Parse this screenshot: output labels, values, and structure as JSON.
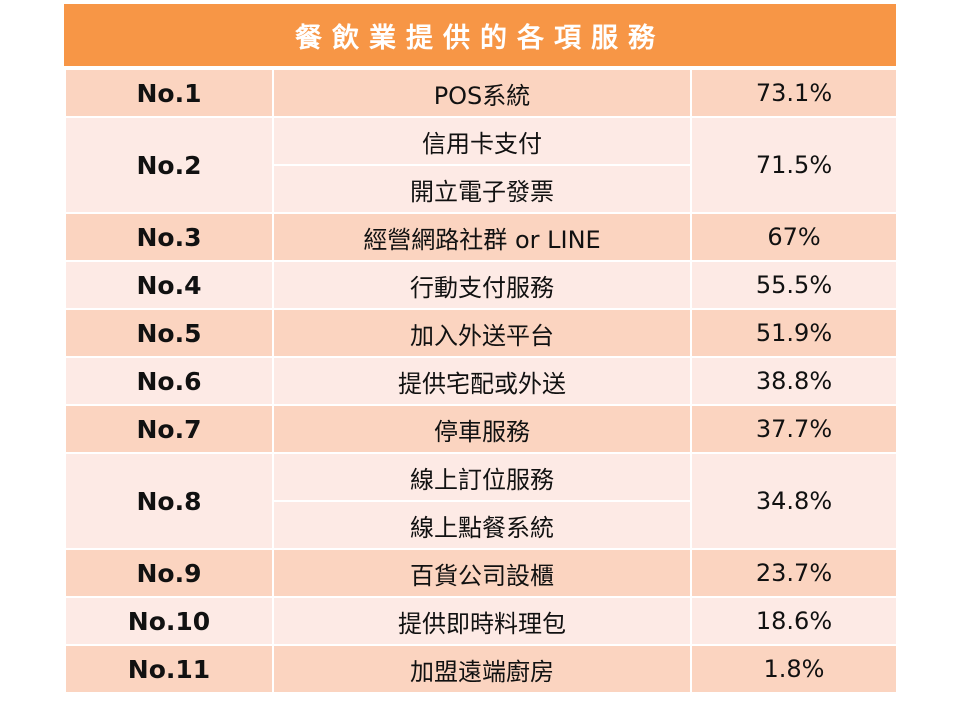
{
  "title": "餐飲業提供的各項服務",
  "rows": [
    {
      "rank": "No.1",
      "items": [
        "POS系統"
      ],
      "pct": "73.1%"
    },
    {
      "rank": "No.2",
      "items": [
        "信用卡支付",
        "開立電子發票"
      ],
      "pct": "71.5%"
    },
    {
      "rank": "No.3",
      "items": [
        "經營網路社群 or LINE"
      ],
      "pct": "67%"
    },
    {
      "rank": "No.4",
      "items": [
        "行動支付服務"
      ],
      "pct": "55.5%"
    },
    {
      "rank": "No.5",
      "items": [
        "加入外送平台"
      ],
      "pct": "51.9%"
    },
    {
      "rank": "No.6",
      "items": [
        "提供宅配或外送"
      ],
      "pct": "38.8%"
    },
    {
      "rank": "No.7",
      "items": [
        "停車服務"
      ],
      "pct": "37.7%"
    },
    {
      "rank": "No.8",
      "items": [
        "線上訂位服務",
        "線上點餐系統"
      ],
      "pct": "34.8%"
    },
    {
      "rank": "No.9",
      "items": [
        "百貨公司設櫃"
      ],
      "pct": "23.7%"
    },
    {
      "rank": "No.10",
      "items": [
        "提供即時料理包"
      ],
      "pct": "18.6%"
    },
    {
      "rank": "No.11",
      "items": [
        "加盟遠端廚房"
      ],
      "pct": "1.8%"
    }
  ],
  "colors": {
    "header": "#f79646",
    "row_dark": "#fbd4c0",
    "row_light": "#fdeae5"
  }
}
